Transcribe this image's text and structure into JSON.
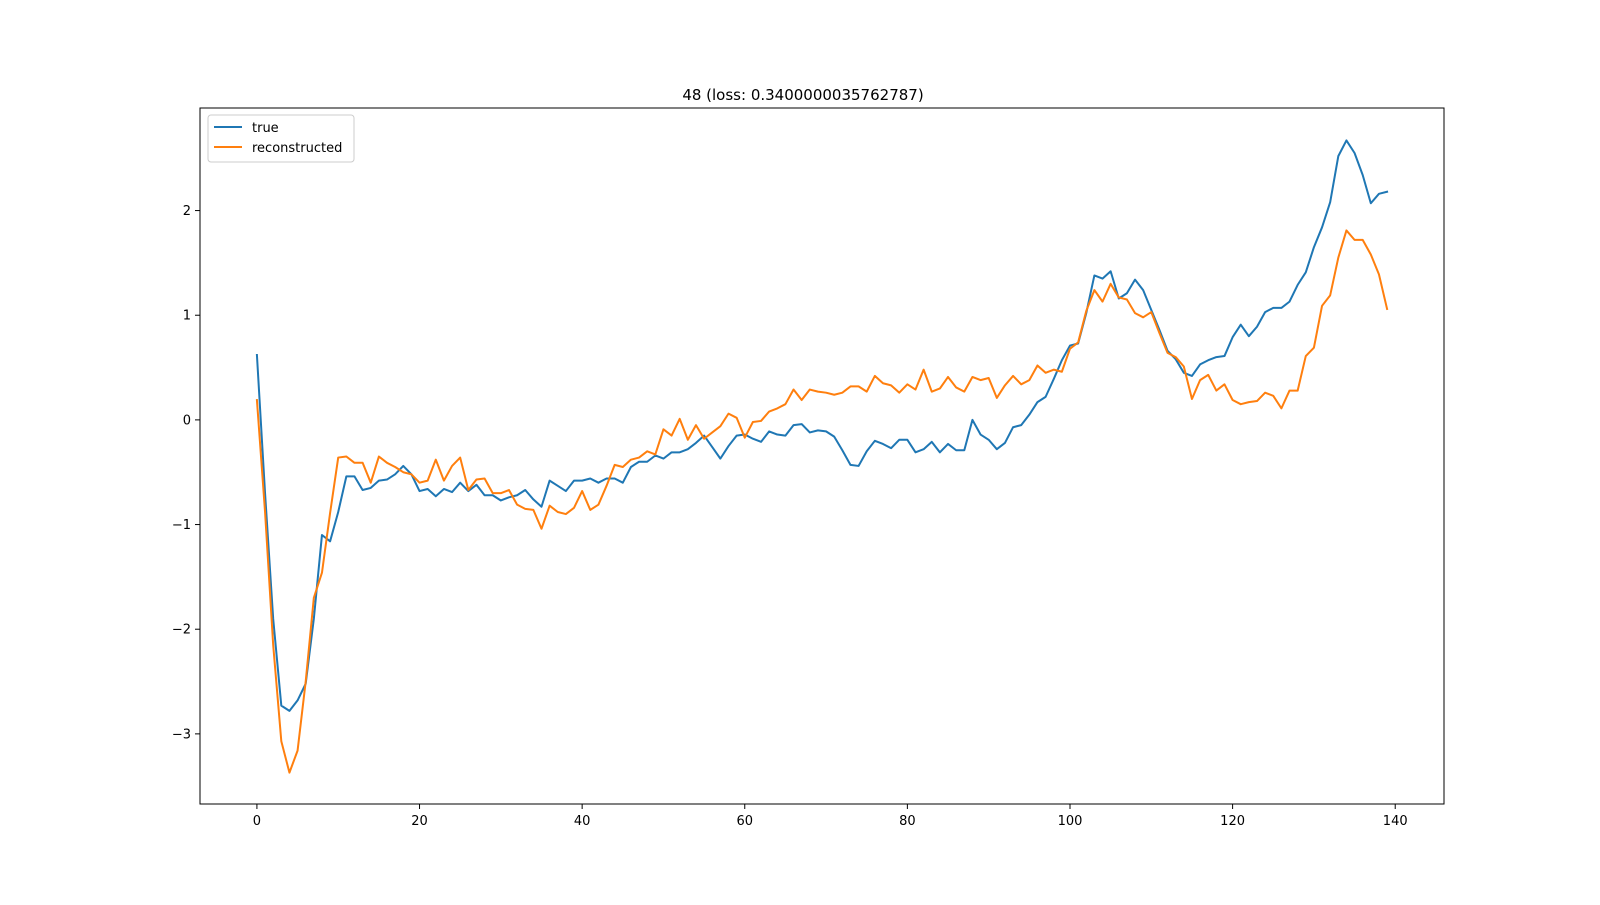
{
  "chart_data": {
    "type": "line",
    "title": "48 (loss: 0.3400000035762787)",
    "xlabel": "",
    "ylabel": "",
    "xlim": [
      -7,
      146
    ],
    "ylim": [
      -3.67,
      2.98
    ],
    "xticks": [
      0,
      20,
      40,
      60,
      80,
      100,
      120,
      140
    ],
    "xtick_labels": [
      "0",
      "20",
      "40",
      "60",
      "80",
      "100",
      "120",
      "140"
    ],
    "yticks": [
      -3,
      -2,
      -1,
      0,
      1,
      2
    ],
    "ytick_labels": [
      "−3",
      "−2",
      "−1",
      "0",
      "1",
      "2"
    ],
    "grid": false,
    "legend": {
      "position": "upper-left",
      "entries": [
        "true",
        "reconstructed"
      ]
    },
    "series": [
      {
        "name": "true",
        "color": "#1f77b4",
        "values": [
          0.62,
          -0.7,
          -1.9,
          -2.73,
          -2.78,
          -2.68,
          -2.52,
          -1.9,
          -1.1,
          -1.16,
          -0.88,
          -0.54,
          -0.54,
          -0.67,
          -0.65,
          -0.58,
          -0.57,
          -0.52,
          -0.44,
          -0.52,
          -0.68,
          -0.66,
          -0.73,
          -0.66,
          -0.69,
          -0.6,
          -0.68,
          -0.62,
          -0.72,
          -0.72,
          -0.77,
          -0.74,
          -0.72,
          -0.67,
          -0.76,
          -0.83,
          -0.58,
          -0.63,
          -0.68,
          -0.58,
          -0.58,
          -0.56,
          -0.6,
          -0.56,
          -0.56,
          -0.6,
          -0.45,
          -0.4,
          -0.4,
          -0.34,
          -0.37,
          -0.31,
          -0.31,
          -0.28,
          -0.22,
          -0.15,
          -0.26,
          -0.37,
          -0.25,
          -0.15,
          -0.14,
          -0.18,
          -0.21,
          -0.11,
          -0.14,
          -0.15,
          -0.05,
          -0.04,
          -0.12,
          -0.1,
          -0.11,
          -0.16,
          -0.29,
          -0.43,
          -0.44,
          -0.3,
          -0.2,
          -0.23,
          -0.27,
          -0.19,
          -0.19,
          -0.31,
          -0.28,
          -0.21,
          -0.31,
          -0.23,
          -0.29,
          -0.29,
          0.0,
          -0.14,
          -0.19,
          -0.28,
          -0.22,
          -0.07,
          -0.05,
          0.05,
          0.17,
          0.22,
          0.39,
          0.57,
          0.71,
          0.73,
          1.02,
          1.38,
          1.35,
          1.42,
          1.16,
          1.21,
          1.34,
          1.24,
          1.05,
          0.86,
          0.66,
          0.58,
          0.45,
          0.42,
          0.53,
          0.57,
          0.6,
          0.61,
          0.79,
          0.91,
          0.8,
          0.89,
          1.03,
          1.07,
          1.07,
          1.13,
          1.29,
          1.41,
          1.65,
          1.84,
          2.08,
          2.52,
          2.67,
          2.55,
          2.34,
          2.07,
          2.16,
          2.18
        ]
      },
      {
        "name": "reconstructed",
        "color": "#ff7f0e",
        "values": [
          0.19,
          -0.88,
          -2.15,
          -3.07,
          -3.37,
          -3.16,
          -2.5,
          -1.7,
          -1.46,
          -0.89,
          -0.36,
          -0.35,
          -0.41,
          -0.41,
          -0.6,
          -0.35,
          -0.41,
          -0.45,
          -0.5,
          -0.52,
          -0.6,
          -0.58,
          -0.38,
          -0.58,
          -0.44,
          -0.36,
          -0.67,
          -0.57,
          -0.56,
          -0.7,
          -0.7,
          -0.67,
          -0.81,
          -0.85,
          -0.86,
          -1.04,
          -0.82,
          -0.88,
          -0.9,
          -0.84,
          -0.68,
          -0.86,
          -0.81,
          -0.63,
          -0.43,
          -0.45,
          -0.38,
          -0.36,
          -0.3,
          -0.33,
          -0.09,
          -0.15,
          0.01,
          -0.19,
          -0.05,
          -0.18,
          -0.12,
          -0.06,
          0.06,
          0.02,
          -0.17,
          -0.02,
          -0.01,
          0.08,
          0.11,
          0.15,
          0.29,
          0.19,
          0.29,
          0.27,
          0.26,
          0.24,
          0.26,
          0.32,
          0.32,
          0.27,
          0.42,
          0.35,
          0.33,
          0.26,
          0.34,
          0.29,
          0.48,
          0.27,
          0.3,
          0.41,
          0.31,
          0.27,
          0.41,
          0.38,
          0.4,
          0.21,
          0.33,
          0.42,
          0.34,
          0.38,
          0.52,
          0.45,
          0.48,
          0.46,
          0.68,
          0.74,
          1.04,
          1.24,
          1.13,
          1.3,
          1.17,
          1.15,
          1.02,
          0.98,
          1.03,
          0.83,
          0.64,
          0.6,
          0.51,
          0.2,
          0.38,
          0.43,
          0.28,
          0.34,
          0.19,
          0.15,
          0.17,
          0.18,
          0.26,
          0.23,
          0.11,
          0.28,
          0.28,
          0.61,
          0.69,
          1.09,
          1.19,
          1.55,
          1.81,
          1.72,
          1.72,
          1.58,
          1.39,
          1.06
        ]
      }
    ]
  }
}
